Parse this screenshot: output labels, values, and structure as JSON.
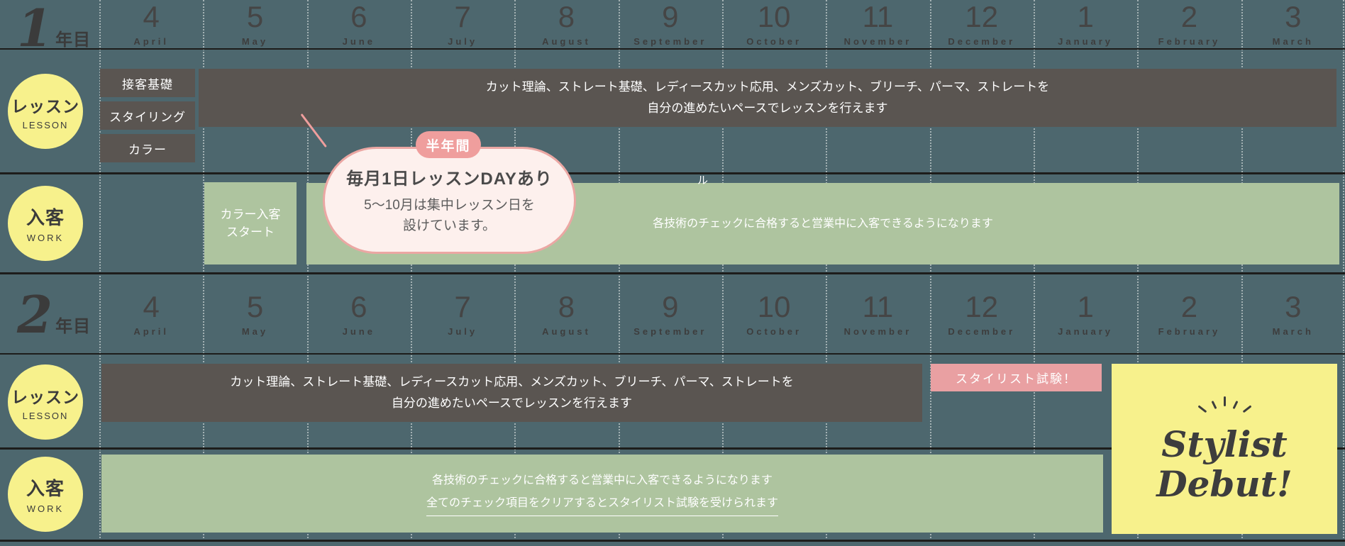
{
  "colors": {
    "background": "#4d676e",
    "dark_bar": "#5a5551",
    "green_bar": "#aec49f",
    "yellow": "#f7f18c",
    "pink": "#e9a0a2",
    "bubble_fill": "#fdf0ed",
    "bubble_border": "#eba7a3",
    "line": "#1d1d1b",
    "text_dark": "#3d3d3d",
    "text_white": "#ffffff"
  },
  "months": [
    {
      "num": "4",
      "name": "April"
    },
    {
      "num": "5",
      "name": "May"
    },
    {
      "num": "6",
      "name": "June"
    },
    {
      "num": "7",
      "name": "July"
    },
    {
      "num": "8",
      "name": "August"
    },
    {
      "num": "9",
      "name": "September"
    },
    {
      "num": "10",
      "name": "October"
    },
    {
      "num": "11",
      "name": "November"
    },
    {
      "num": "12",
      "name": "December"
    },
    {
      "num": "1",
      "name": "January"
    },
    {
      "num": "2",
      "name": "February"
    },
    {
      "num": "3",
      "name": "March"
    }
  ],
  "year1": {
    "label_num": "1",
    "label_suffix": "年目",
    "lesson": {
      "circle_title": "レッスン",
      "circle_sub": "LESSON",
      "intro_box_1": "接客基礎",
      "intro_box_2": "スタイリング",
      "intro_box_3": "カラー",
      "bar_line1": "カット理論、ストレート基礎、レディースカット応用、メンズカット、ブリーチ、パーマ、ストレートを",
      "bar_line2": "自分の進めたいペースでレッスンを行えます"
    },
    "work": {
      "circle_title": "入客",
      "circle_sub": "WORK",
      "start_box_line1": "カラー入客",
      "start_box_line2": "スタート",
      "bar_text": "各技術のチェックに合格すると営業中に入客できるようになります",
      "clipped_fragment": "ル"
    },
    "bubble": {
      "badge": "半年間",
      "title": "毎月1日レッスンDAYあり",
      "body_line1": "5〜10月は集中レッスン日を",
      "body_line2": "設けています。"
    }
  },
  "year2": {
    "label_num": "2",
    "label_suffix": "年目",
    "lesson": {
      "circle_title": "レッスン",
      "circle_sub": "LESSON",
      "bar_line1": "カット理論、ストレート基礎、レディースカット応用、メンズカット、ブリーチ、パーマ、ストレートを",
      "bar_line2": "自分の進めたいペースでレッスンを行えます",
      "exam_label": "スタイリスト試験！"
    },
    "work": {
      "circle_title": "入客",
      "circle_sub": "WORK",
      "bar_line1": "各技術のチェックに合格すると営業中に入客できるようになります",
      "bar_line2": "全てのチェック項目をクリアするとスタイリスト試験を受けられます"
    },
    "debut": {
      "line1": "Stylist",
      "line2": "Debut!"
    }
  }
}
